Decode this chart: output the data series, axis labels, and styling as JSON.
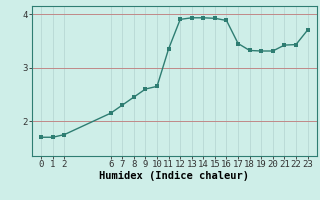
{
  "x": [
    0,
    1,
    2,
    6,
    7,
    8,
    9,
    10,
    11,
    12,
    13,
    14,
    15,
    16,
    17,
    18,
    19,
    20,
    21,
    22,
    23
  ],
  "y": [
    1.7,
    1.7,
    1.75,
    2.15,
    2.3,
    2.45,
    2.6,
    2.65,
    3.35,
    3.9,
    3.93,
    3.93,
    3.92,
    3.88,
    3.45,
    3.32,
    3.31,
    3.31,
    3.42,
    3.43,
    3.7
  ],
  "line_color": "#2e7d72",
  "marker_color": "#2e7d72",
  "bg_color": "#ceeee8",
  "grid_color_v": "#b8d8d4",
  "grid_color_h": "#c08888",
  "xlabel": "Humidex (Indice chaleur)",
  "ylim": [
    1.35,
    4.15
  ],
  "yticks": [
    2,
    3,
    4
  ],
  "xticks": [
    0,
    1,
    2,
    6,
    7,
    8,
    9,
    10,
    11,
    12,
    13,
    14,
    15,
    16,
    17,
    18,
    19,
    20,
    21,
    22,
    23
  ],
  "xlabel_fontsize": 7.5,
  "tick_fontsize": 6.5,
  "line_width": 1.0,
  "marker_size": 2.5
}
